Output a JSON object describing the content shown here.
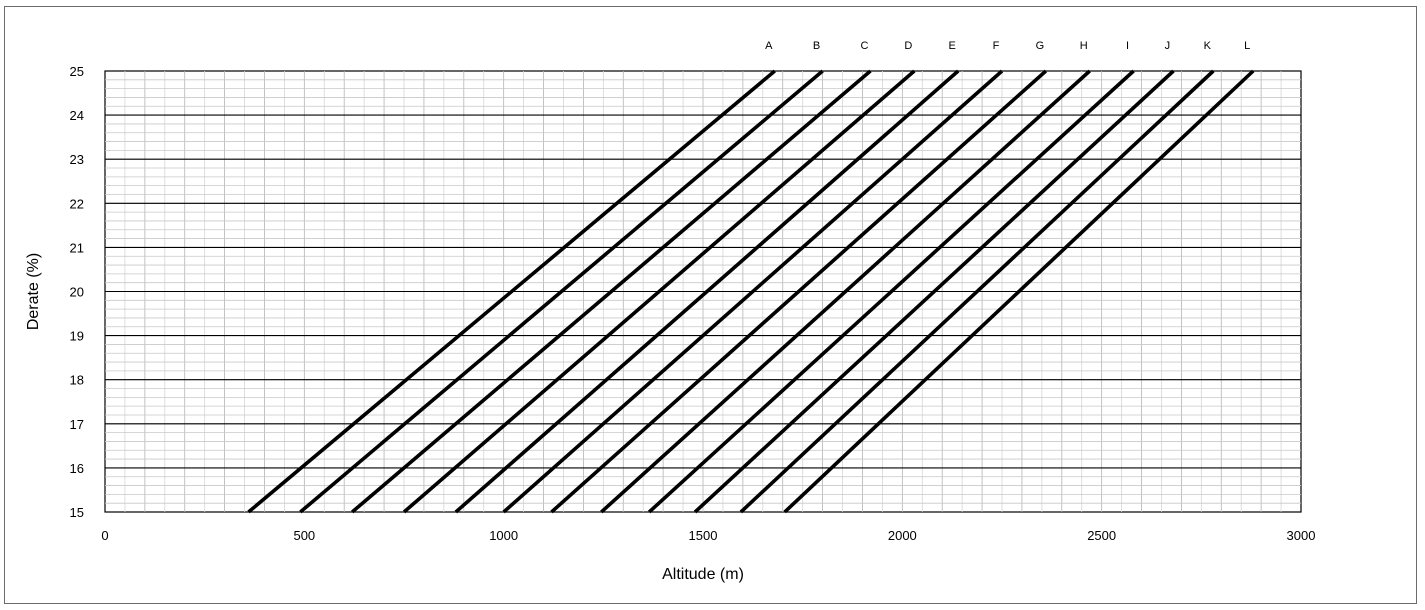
{
  "chart_data": {
    "type": "line",
    "title": "",
    "xlabel": "Altitude (m)",
    "ylabel": "Derate (%)",
    "xlim": [
      0,
      3000
    ],
    "ylim": [
      15,
      25
    ],
    "x_ticks": [
      0,
      500,
      1000,
      1500,
      2000,
      2500,
      3000
    ],
    "y_ticks": [
      15,
      16,
      17,
      18,
      19,
      20,
      21,
      22,
      23,
      24,
      25
    ],
    "x_tick_labels": [
      "0",
      "500",
      "1000",
      "1500",
      "2000",
      "2500",
      "3000"
    ],
    "y_tick_labels": [
      "15",
      "16",
      "17",
      "18",
      "19",
      "20",
      "21",
      "22",
      "23",
      "24",
      "25"
    ],
    "grid": {
      "major": true,
      "minor": true,
      "x_minor_step": 50,
      "y_minor_step": 0.2
    },
    "legend": "series labels along top edge",
    "line_color": "#000000",
    "series": [
      {
        "name": "A",
        "x": [
          360,
          1680
        ],
        "y": [
          15,
          25
        ]
      },
      {
        "name": "B",
        "x": [
          490,
          1800
        ],
        "y": [
          15,
          25
        ]
      },
      {
        "name": "C",
        "x": [
          620,
          1920
        ],
        "y": [
          15,
          25
        ]
      },
      {
        "name": "D",
        "x": [
          750,
          2030
        ],
        "y": [
          15,
          25
        ]
      },
      {
        "name": "E",
        "x": [
          880,
          2140
        ],
        "y": [
          15,
          25
        ]
      },
      {
        "name": "F",
        "x": [
          1000,
          2250
        ],
        "y": [
          15,
          25
        ]
      },
      {
        "name": "G",
        "x": [
          1120,
          2360
        ],
        "y": [
          15,
          25
        ]
      },
      {
        "name": "H",
        "x": [
          1245,
          2470
        ],
        "y": [
          15,
          25
        ]
      },
      {
        "name": "I",
        "x": [
          1365,
          2580
        ],
        "y": [
          15,
          25
        ]
      },
      {
        "name": "J",
        "x": [
          1480,
          2680
        ],
        "y": [
          15,
          25
        ]
      },
      {
        "name": "K",
        "x": [
          1595,
          2780
        ],
        "y": [
          15,
          25
        ]
      },
      {
        "name": "L",
        "x": [
          1705,
          2880
        ],
        "y": [
          15,
          25
        ]
      }
    ]
  }
}
